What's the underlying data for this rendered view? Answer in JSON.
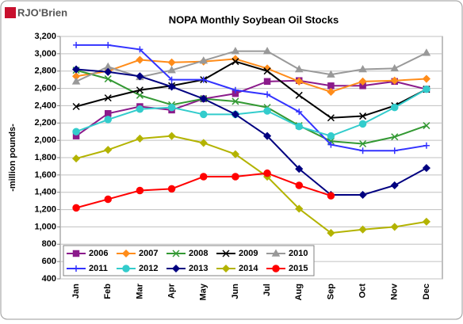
{
  "logo": "RJO'Brien",
  "chart_data": {
    "type": "line",
    "title": "NOPA Monthly Soybean Oil Stocks",
    "ylabel": "-million pounds-",
    "categories": [
      "Jan",
      "Feb",
      "Mar",
      "Apr",
      "May",
      "Jun",
      "Jul",
      "Aug",
      "Sep",
      "Oct",
      "Nov",
      "Dec"
    ],
    "ylim": [
      400,
      3200
    ],
    "yticks": [
      400,
      600,
      800,
      {
        "value": 1000,
        "label": "1,000"
      },
      {
        "value": 1200,
        "label": "1,200"
      },
      {
        "value": 1400,
        "label": "1,400"
      },
      {
        "value": 1600,
        "label": "1,600"
      },
      {
        "value": 1800,
        "label": "1,800"
      },
      {
        "value": 2000,
        "label": "2,000"
      },
      {
        "value": 2200,
        "label": "2,200"
      },
      {
        "value": 2400,
        "label": "2,400"
      },
      {
        "value": 2600,
        "label": "2,600"
      },
      {
        "value": 2800,
        "label": "2,800"
      },
      {
        "value": 3000,
        "label": "3,000"
      },
      {
        "value": 3200,
        "label": "3,200"
      }
    ],
    "grid": true,
    "legend": "lower-left",
    "series": [
      {
        "name": "2006",
        "color": "#8b1a8b",
        "marker": "square",
        "values": [
          2050,
          2310,
          2390,
          2350,
          2480,
          2540,
          2680,
          2690,
          2630,
          2630,
          2680,
          2590
        ]
      },
      {
        "name": "2007",
        "color": "#ff8c1a",
        "marker": "diamond",
        "values": [
          2740,
          2800,
          2930,
          2900,
          2910,
          2940,
          2830,
          2680,
          2560,
          2680,
          2690,
          2710
        ]
      },
      {
        "name": "2008",
        "color": "#339933",
        "marker": "x",
        "values": [
          2810,
          2710,
          2520,
          2410,
          2480,
          2450,
          2380,
          2170,
          1990,
          1960,
          2040,
          2170
        ]
      },
      {
        "name": "2009",
        "color": "#000000",
        "marker": "x",
        "values": [
          2390,
          2490,
          2580,
          2630,
          2700,
          2910,
          2800,
          2520,
          2260,
          2280,
          2400,
          2590
        ]
      },
      {
        "name": "2010",
        "color": "#999999",
        "marker": "triangle",
        "values": [
          2680,
          2850,
          2730,
          2810,
          2920,
          3030,
          3030,
          2820,
          2760,
          2820,
          2830,
          3010
        ]
      },
      {
        "name": "2011",
        "color": "#3333ff",
        "marker": "plus",
        "values": [
          3100,
          3100,
          3050,
          2700,
          2700,
          2580,
          2530,
          2330,
          1950,
          1880,
          1880,
          1940
        ]
      },
      {
        "name": "2012",
        "color": "#33cccc",
        "marker": "circle",
        "values": [
          2100,
          2240,
          2360,
          2380,
          2300,
          2300,
          2340,
          2160,
          2050,
          2190,
          2380,
          2590
        ]
      },
      {
        "name": "2013",
        "color": "#000080",
        "marker": "diamond",
        "values": [
          2820,
          2790,
          2740,
          2620,
          2480,
          2300,
          2050,
          1670,
          1370,
          1370,
          1480,
          1680
        ]
      },
      {
        "name": "2014",
        "color": "#b3b300",
        "marker": "diamond",
        "values": [
          1790,
          1890,
          2020,
          2050,
          1970,
          1840,
          1580,
          1210,
          930,
          970,
          1000,
          1060
        ]
      },
      {
        "name": "2015",
        "color": "#ff0000",
        "marker": "circle",
        "values": [
          1220,
          1320,
          1420,
          1440,
          1580,
          1580,
          1620,
          1480,
          1360,
          null,
          null,
          null
        ]
      }
    ]
  }
}
